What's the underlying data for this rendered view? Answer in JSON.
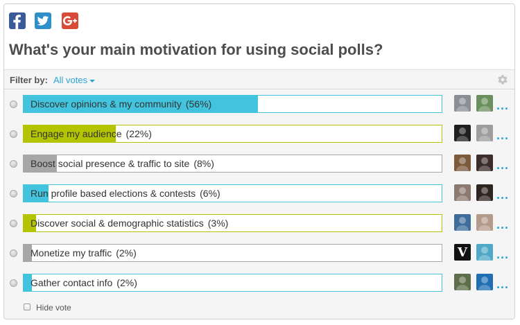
{
  "share": {
    "facebook_icon": "facebook-f-icon",
    "twitter_icon": "twitter-bird-icon",
    "google_icon": "google-plus-icon",
    "colors": {
      "facebook": "#3b5a9a",
      "twitter": "#2e8fc9",
      "google": "#d94a38"
    }
  },
  "poll": {
    "question": "What's your main motivation for using social polls?"
  },
  "filter": {
    "label": "Filter by:",
    "selected": "All votes",
    "settings_icon": "gear-icon"
  },
  "options": [
    {
      "label": "Discover opinions & my community",
      "percent_label": "(56%)",
      "fill_percent": 56,
      "color": "#42c3de",
      "avatars": [
        "#8a8f95",
        "#6b8f5e"
      ]
    },
    {
      "label": "Engage my audience",
      "percent_label": "(22%)",
      "fill_percent": 22,
      "color": "#b4c400",
      "avatars": [
        "#1f1f1f",
        "#9d9d9d"
      ]
    },
    {
      "label": "Boost social presence & traffic to site",
      "percent_label": "(8%)",
      "fill_percent": 8,
      "color": "#a7a7a7",
      "avatars": [
        "#7d5a3c",
        "#3a2d2a"
      ]
    },
    {
      "label": "Run profile based elections & contests",
      "percent_label": "(6%)",
      "fill_percent": 6,
      "color": "#42c3de",
      "avatars": [
        "#8c7a70",
        "#2e2420"
      ]
    },
    {
      "label": "Discover social & demographic statistics",
      "percent_label": "(3%)",
      "fill_percent": 3,
      "color": "#b4c400",
      "avatars": [
        "#3d6d9a",
        "#b49a8a"
      ]
    },
    {
      "label": "Monetize my traffic",
      "percent_label": "(2%)",
      "fill_percent": 2,
      "color": "#a7a7a7",
      "avatars": [
        "#111111",
        "#4fa8c8"
      ],
      "first_avatar_letter": "V"
    },
    {
      "label": "Gather contact info",
      "percent_label": "(2%)",
      "fill_percent": 2,
      "color": "#42c3de",
      "avatars": [
        "#5e6e4a",
        "#1f6fb2"
      ]
    }
  ],
  "more_label": "...",
  "hide_vote": {
    "label": "Hide vote"
  }
}
